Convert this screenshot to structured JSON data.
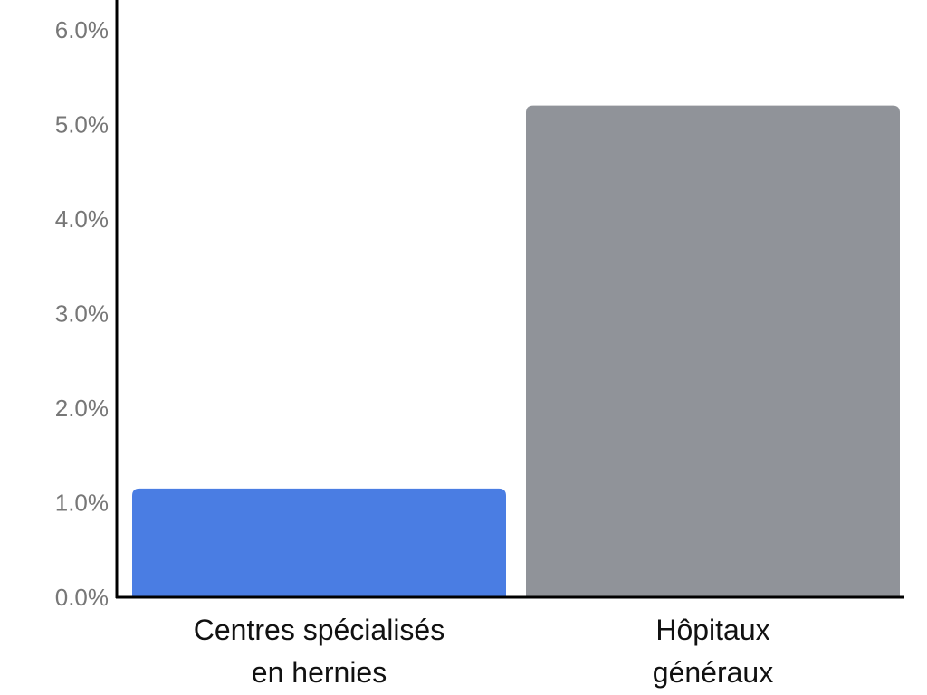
{
  "chart_data": {
    "type": "bar",
    "title": "",
    "xlabel": "",
    "ylabel": "",
    "categories": [
      [
        "Centres spécialisés",
        "en hernies"
      ],
      [
        "Hôpitaux",
        "généraux"
      ]
    ],
    "values": [
      1.15,
      5.2
    ],
    "colors": [
      "#4a7de3",
      "#909399"
    ],
    "ylim": [
      0,
      6.3
    ],
    "yticks": [
      "0.0%",
      "1.0%",
      "2.0%",
      "3.0%",
      "4.0%",
      "5.0%",
      "6.0%"
    ],
    "ytick_values": [
      0,
      1,
      2,
      3,
      4,
      5,
      6
    ],
    "grid": false,
    "legend": "none"
  }
}
